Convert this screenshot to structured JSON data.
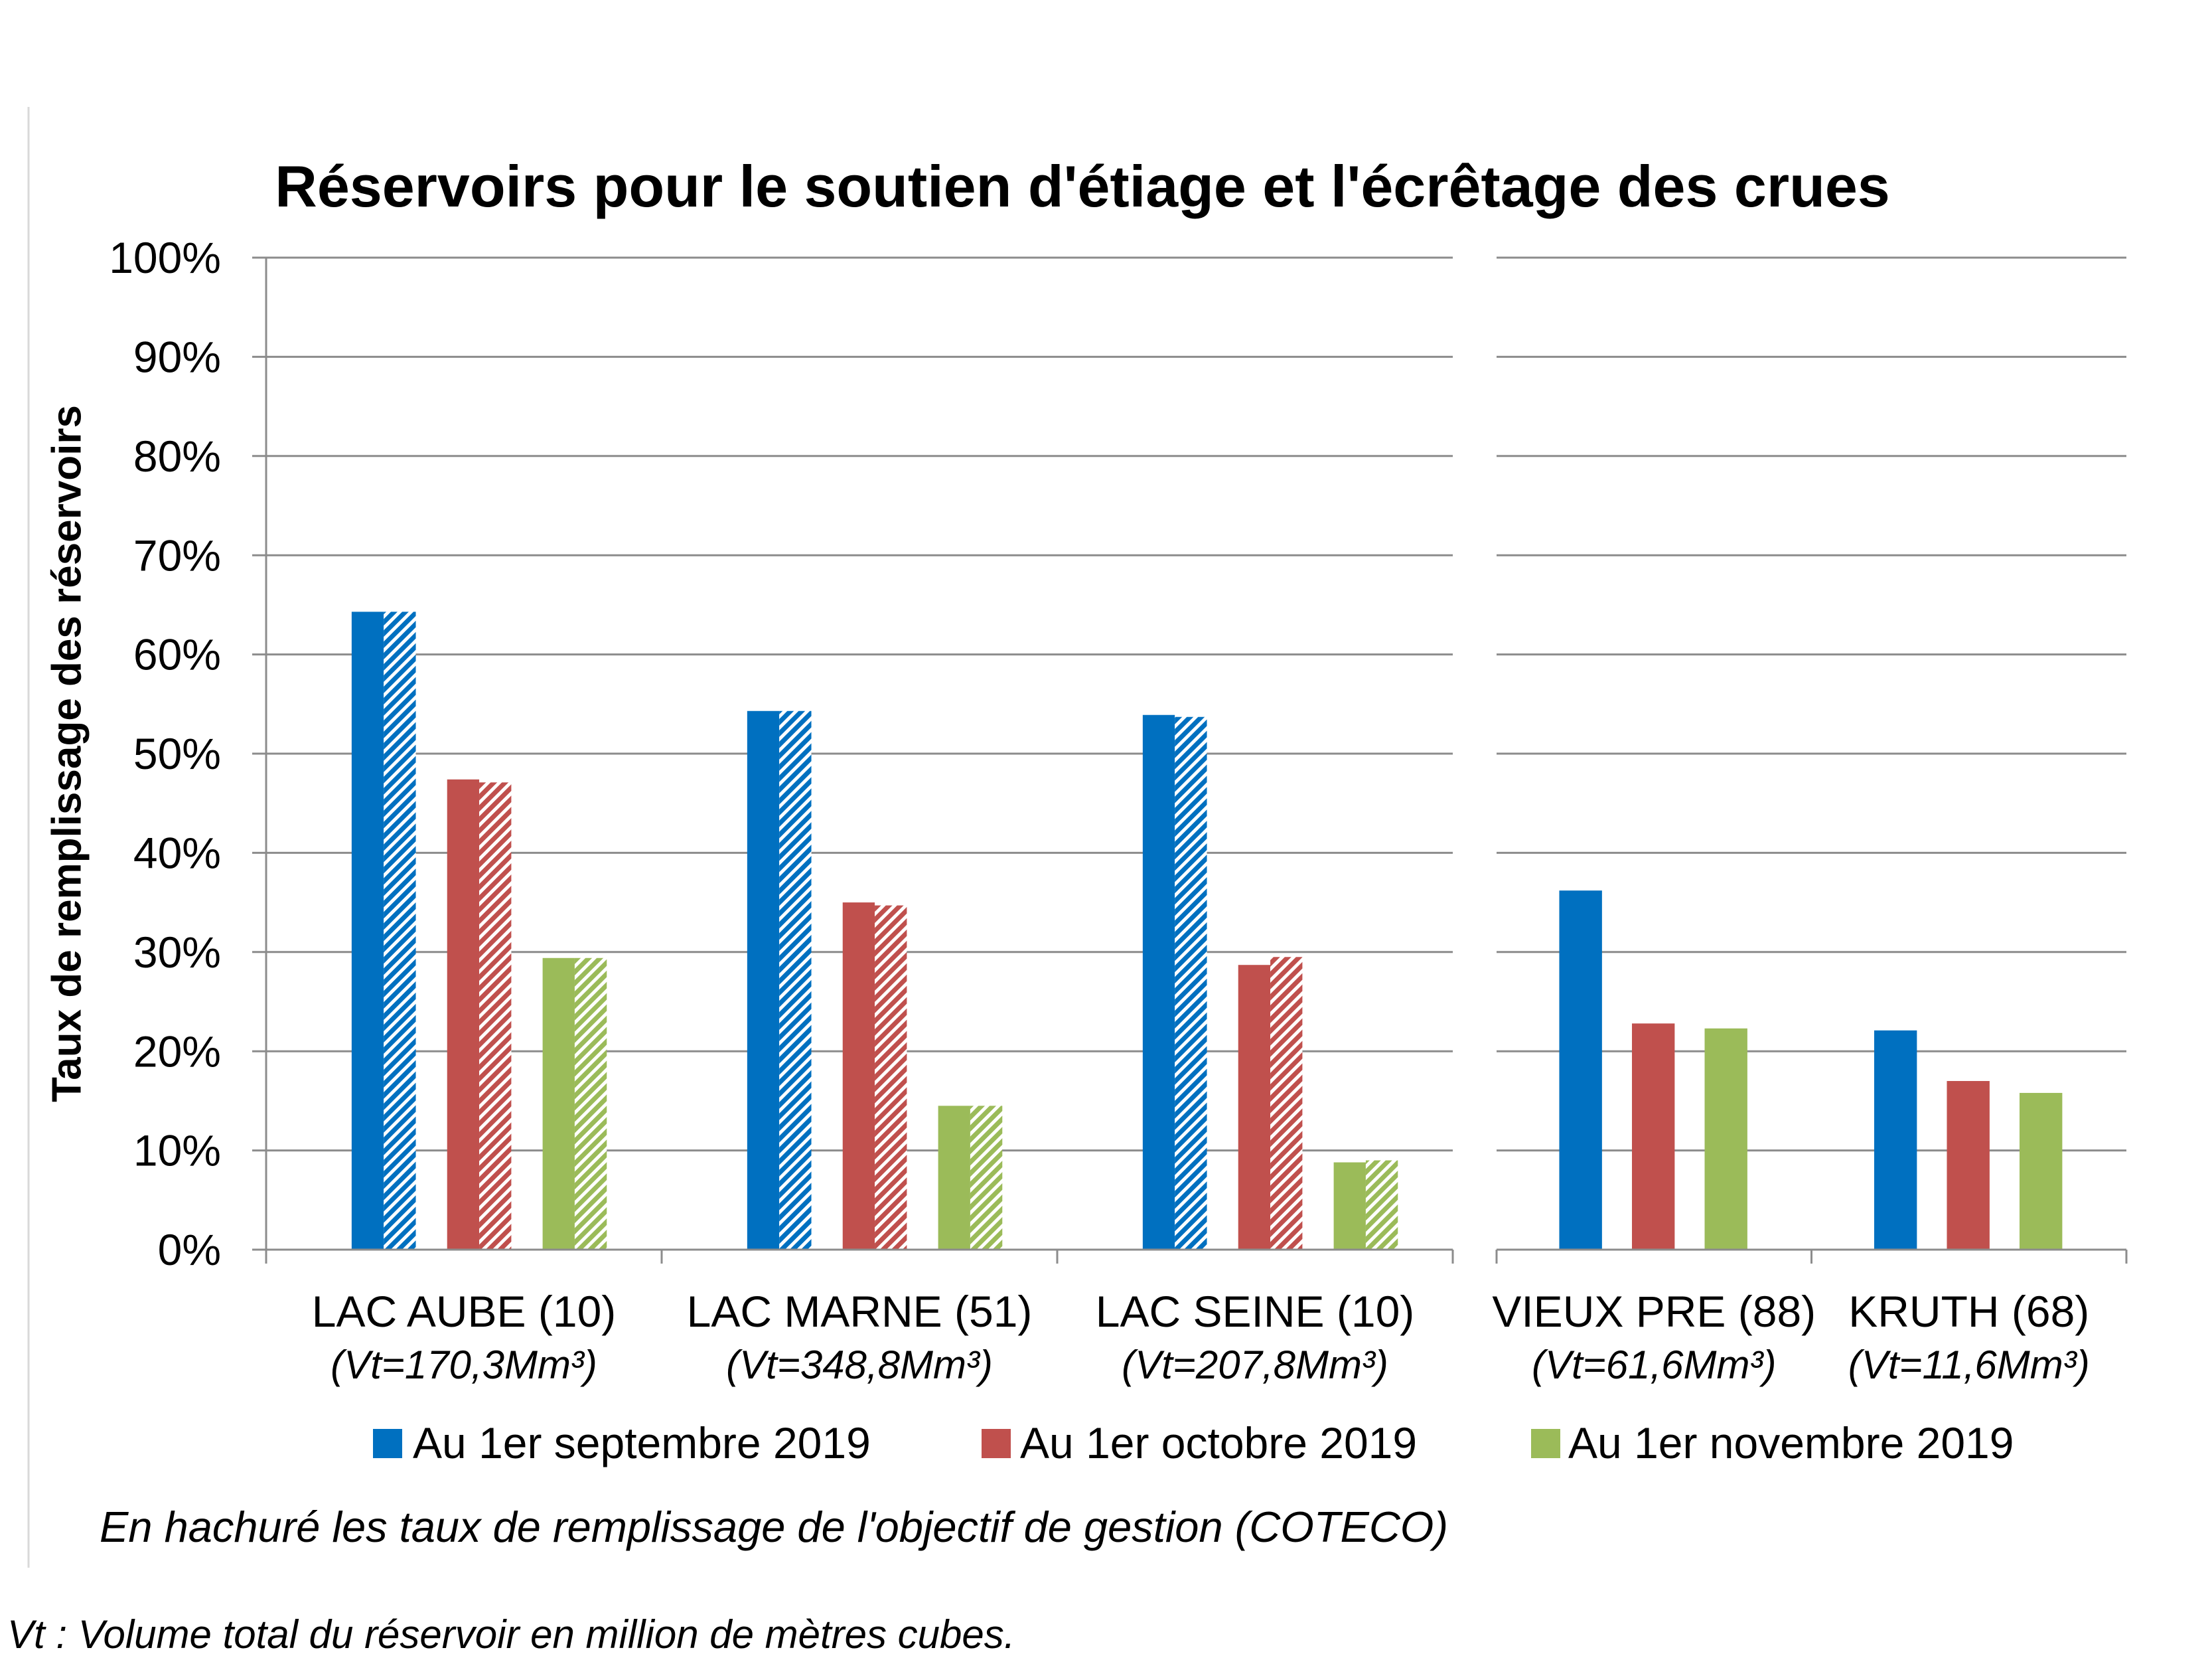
{
  "chart_data": {
    "type": "bar",
    "title": "Réservoirs pour le soutien d'étiage et l'écrêtage des crues",
    "ylabel": "Taux de remplissage des réservoirs",
    "ylim": [
      0,
      100
    ],
    "ytick_values": [
      0,
      10,
      20,
      30,
      40,
      50,
      60,
      70,
      80,
      90,
      100
    ],
    "ytick_labels": [
      "0%",
      "10%",
      "20%",
      "30%",
      "40%",
      "50%",
      "60%",
      "70%",
      "80%",
      "90%",
      "100%"
    ],
    "grid": true,
    "legend_position": "bottom",
    "series": [
      {
        "name": "Au 1er septembre 2019",
        "color": "#0070C0"
      },
      {
        "name": "Au 1er octobre 2019",
        "color": "#C0504D"
      },
      {
        "name": "Au 1er novembre 2019",
        "color": "#9BBB59"
      }
    ],
    "panels": [
      {
        "categories": [
          "LAC AUBE (10)",
          "LAC MARNE (51)",
          "LAC SEINE (10)"
        ],
        "volumes": [
          "(Vt=170,3Mm³)",
          "(Vt=348,8Mm³)",
          "(Vt=207,8Mm³)"
        ],
        "values": [
          [
            64.3,
            54.3,
            53.9
          ],
          [
            47.4,
            35.0,
            28.7
          ],
          [
            29.4,
            14.5,
            8.8
          ]
        ],
        "objective_values": [
          [
            64.3,
            54.3,
            53.7
          ],
          [
            47.1,
            34.7,
            29.5
          ],
          [
            29.4,
            14.5,
            9.0
          ]
        ]
      },
      {
        "categories": [
          "VIEUX PRE (88)",
          "KRUTH (68)"
        ],
        "volumes": [
          "(Vt=61,6Mm³)",
          "(Vt=11,6Mm³)"
        ],
        "values": [
          [
            36.2,
            22.1
          ],
          [
            22.8,
            17.0
          ],
          [
            22.3,
            15.8
          ]
        ]
      }
    ],
    "note": "En hachuré les taux de remplissage de l'objectif de gestion (COTECO)",
    "footnote": "Vt : Volume total du réservoir en million de mètres cubes."
  }
}
